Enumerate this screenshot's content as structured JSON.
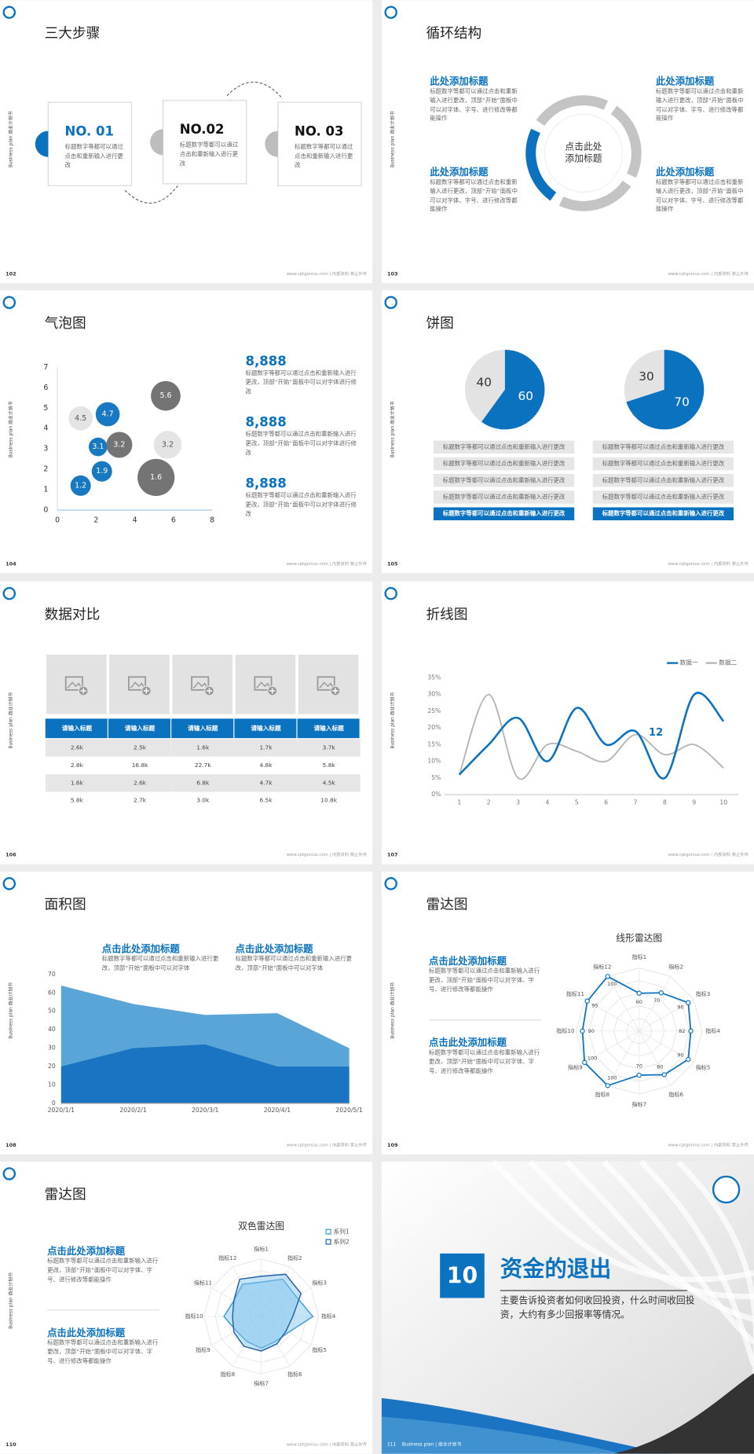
{
  "sidebar": "Business plan 商业计划书",
  "footer": "www.cptgenius.com | 内部资料 禁止外传",
  "slides": [
    {
      "number": "102",
      "title": "三大步骤",
      "steps": [
        {
          "label": "NO. 01",
          "text": "标题数字等都可以通过点击和重新输入进行更改"
        },
        {
          "label": "NO.02",
          "text": "标题数字等都可以通过点击和重新输入进行更改"
        },
        {
          "label": "NO. 03",
          "text": "标题数字等都可以通过点击和重新输入进行更改"
        }
      ]
    },
    {
      "number": "103",
      "title": "循环结构",
      "center": "点击此处添加标题",
      "blocks": [
        {
          "heading": "此处添加标题",
          "text": "标题数字等都可以通过点击和重新输入进行更改，顶部“开始”面板中可以对字体、字号、进行修改等都能操作"
        },
        {
          "heading": "此处添加标题",
          "text": "标题数字等都可以通过点击和重新输入进行更改，顶部“开始”面板中可以对字体、字号、进行修改等都能操作"
        },
        {
          "heading": "此处添加标题",
          "text": "标题数字等都可以通过点击和重新输入进行更改，顶部“开始”面板中可以对字体、字号、进行修改等都能操作"
        },
        {
          "heading": "此处添加标题",
          "text": "标题数字等都可以通过点击和重新输入进行更改，顶部“开始”面板中可以对字体、字号、进行修改等都能操作"
        }
      ]
    },
    {
      "number": "104",
      "title": "气泡图",
      "notes": [
        {
          "value": "8,888",
          "text": "标题数字等都可以通过点击和重新输入进行更改，顶部“开始”面板中可以对字体进行修改"
        },
        {
          "value": "8,888",
          "text": "标题数字等都可以通过点击和重新输入进行更改，顶部“开始”面板中可以对字体进行修改"
        },
        {
          "value": "8,888",
          "text": "标题数字等都可以通过点击和重新输入进行更改，顶部“开始”面板中可以对字体进行修改"
        }
      ]
    },
    {
      "number": "105",
      "title": "饼图",
      "left_rows": [
        "标题数字等都可以通过点击和重新输入进行更改",
        "标题数字等都可以通过点击和重新输入进行更改",
        "标题数字等都可以通过点击和重新输入进行更改",
        "标题数字等都可以通过点击和重新输入进行更改",
        "标题数字等都可以通过点击和重新输入进行更改"
      ],
      "right_rows": [
        "标题数字等都可以通过点击和重新输入进行更改",
        "标题数字等都可以通过点击和重新输入进行更改",
        "标题数字等都可以通过点击和重新输入进行更改",
        "标题数字等都可以通过点击和重新输入进行更改",
        "标题数字等都可以通过点击和重新输入进行更改"
      ]
    },
    {
      "number": "106",
      "title": "数据对比",
      "table": {
        "header": [
          "请输入标题",
          "请输入标题",
          "请输入标题",
          "请输入标题",
          "请输入标题"
        ],
        "rows": [
          [
            "2.6k",
            "2.5k",
            "1.6k",
            "1.7k",
            "3.7k"
          ],
          [
            "2.8k",
            "16.8k",
            "22.7k",
            "4.8k",
            "5.8k"
          ],
          [
            "1.6k",
            "2.6k",
            "6.8k",
            "4.7k",
            "4.5k"
          ],
          [
            "5.8k",
            "2.7k",
            "3.0k",
            "6.5k",
            "10.8k"
          ]
        ]
      }
    },
    {
      "number": "107",
      "title": "折线图"
    },
    {
      "number": "108",
      "title": "面积图",
      "blocks": [
        {
          "heading": "点击此处添加标题",
          "text": "标题数字等都可以通过点击和重新输入进行更改，顶部“开始”面板中可以对字体"
        },
        {
          "heading": "点击此处添加标题",
          "text": "标题数字等都可以通过点击和重新输入进行更改，顶部“开始”面板中可以对字体"
        }
      ]
    },
    {
      "number": "109",
      "title": "雷达图",
      "blocks": [
        {
          "heading": "点击此处添加标题",
          "text": "标题数字等都可以通过点击和重新输入进行更改，顶部“开始”面板中可以对字体、字号、进行修改等都能操作"
        },
        {
          "heading": "点击此处添加标题",
          "text": "标题数字等都可以通过点击和重新输入进行更改，顶部“开始”面板中可以对字体、字号、进行修改等都能操作"
        }
      ]
    },
    {
      "number": "110",
      "title": "雷达图",
      "blocks": [
        {
          "heading": "点击此处添加标题",
          "text": "标题数字等都可以通过点击和重新输入进行更改，顶部“开始”面板中可以对字体、字号、进行修改等都能操作"
        },
        {
          "heading": "点击此处添加标题",
          "text": "标题数字等都可以通过点击和重新输入进行更改，顶部“开始”面板中可以对字体、字号、进行修改等都能操作"
        }
      ]
    },
    {
      "number": "111",
      "section": "10",
      "title": "资金的退出",
      "text": "主要告诉投资者如何收回投资，什么时间收回投资，大约有多少回报率等情况。",
      "footer": "Business plan | 商业计划书"
    }
  ],
  "chart_data": [
    {
      "type": "bubble",
      "x": [
        1.2,
        2.3,
        2.1,
        2.6,
        1.2,
        3.2,
        5.6,
        5.7,
        5.1
      ],
      "y": [
        1.2,
        1.9,
        3.1,
        4.7,
        4.5,
        3.2,
        5.6,
        3.2,
        1.6
      ],
      "sizes": [
        11,
        11,
        10,
        13,
        13,
        14,
        16,
        15,
        20
      ],
      "colors": [
        "#0b72bf",
        "#0b72bf",
        "#0b72bf",
        "#0b72bf",
        "#e3e3e3",
        "#6d6d6d",
        "#6d6d6d",
        "#e3e3e3",
        "#6d6d6d"
      ],
      "xlim": [
        0,
        8
      ],
      "ylim": [
        0,
        7
      ],
      "xticks": [
        0,
        2,
        4,
        6,
        8
      ],
      "yticks": [
        0,
        1,
        2,
        3,
        4,
        5,
        6,
        7
      ]
    },
    {
      "type": "pie",
      "values": [
        60,
        40
      ],
      "colors": [
        "#0b72bf",
        "#e3e3e3"
      ]
    },
    {
      "type": "pie",
      "values": [
        70,
        30
      ],
      "colors": [
        "#0b72bf",
        "#e3e3e3"
      ]
    },
    {
      "type": "line",
      "x": [
        1,
        2,
        3,
        4,
        5,
        6,
        7,
        8,
        9,
        10
      ],
      "series": [
        {
          "name": "数据一",
          "color": "#0b72bf",
          "values": [
            6,
            15,
            23,
            10,
            26,
            15,
            19,
            5,
            30,
            22
          ]
        },
        {
          "name": "数据二",
          "color": "#b5b5b5",
          "values": [
            6,
            30,
            5,
            15,
            13,
            10,
            18,
            12,
            15,
            8
          ]
        }
      ],
      "xlim": [
        0.5,
        10.5
      ],
      "xticks": [
        1,
        2,
        3,
        4,
        5,
        6,
        7,
        8,
        9,
        10
      ],
      "ylim": [
        0,
        35
      ],
      "yticks": [
        {
          "value": 0,
          "label": "0%"
        },
        {
          "value": 5,
          "label": "5%"
        },
        {
          "value": 10,
          "label": "10%"
        },
        {
          "value": 15,
          "label": "15%"
        },
        {
          "value": 20,
          "label": "20%"
        },
        {
          "value": 25,
          "label": "25%"
        },
        {
          "value": 30,
          "label": "30%"
        },
        {
          "value": 35,
          "label": "35%"
        }
      ],
      "annotation": "12"
    },
    {
      "type": "area",
      "categories": [
        "2020/1/1",
        "2020/2/1",
        "2020/3/1",
        "2020/4/1",
        "2020/5/1"
      ],
      "series": [
        {
          "color": "#5aa5d8",
          "values": [
            64,
            54,
            48,
            49,
            30
          ]
        },
        {
          "color": "#1b74c2",
          "values": [
            20,
            30,
            32,
            20,
            20
          ]
        }
      ],
      "ylim": [
        0,
        70
      ],
      "yticks": [
        0,
        10,
        20,
        30,
        40,
        50,
        60,
        70
      ]
    },
    {
      "type": "radar",
      "title": "线形雷达图",
      "categories": [
        "指标1",
        "指标2",
        "指标3",
        "指标4",
        "指标5",
        "指标6",
        "指标7",
        "指标8",
        "指标9",
        "指标10",
        "指标11",
        "指标12"
      ],
      "values": [
        60,
        70,
        90,
        82,
        90,
        80,
        70,
        100,
        100,
        90,
        95,
        100
      ],
      "color": "#0b72bf",
      "rlim": [
        0,
        100
      ]
    },
    {
      "type": "radar",
      "title": "双色雷达图",
      "categories": [
        "指标1",
        "指标2",
        "指标3",
        "指标4",
        "指标5",
        "指标6",
        "指标7",
        "指标8",
        "指标9",
        "指标10",
        "指标11",
        "指标12"
      ],
      "series": [
        {
          "name": "系列1",
          "color": "#3a9ad9",
          "values": [
            60,
            75,
            70,
            90,
            55,
            50,
            55,
            50,
            50,
            65,
            55,
            65
          ]
        },
        {
          "name": "系列2",
          "color": "#1e5fa8",
          "values": [
            70,
            85,
            80,
            55,
            50,
            55,
            60,
            60,
            55,
            50,
            55,
            75
          ]
        }
      ],
      "rlim": [
        0,
        100
      ]
    }
  ]
}
